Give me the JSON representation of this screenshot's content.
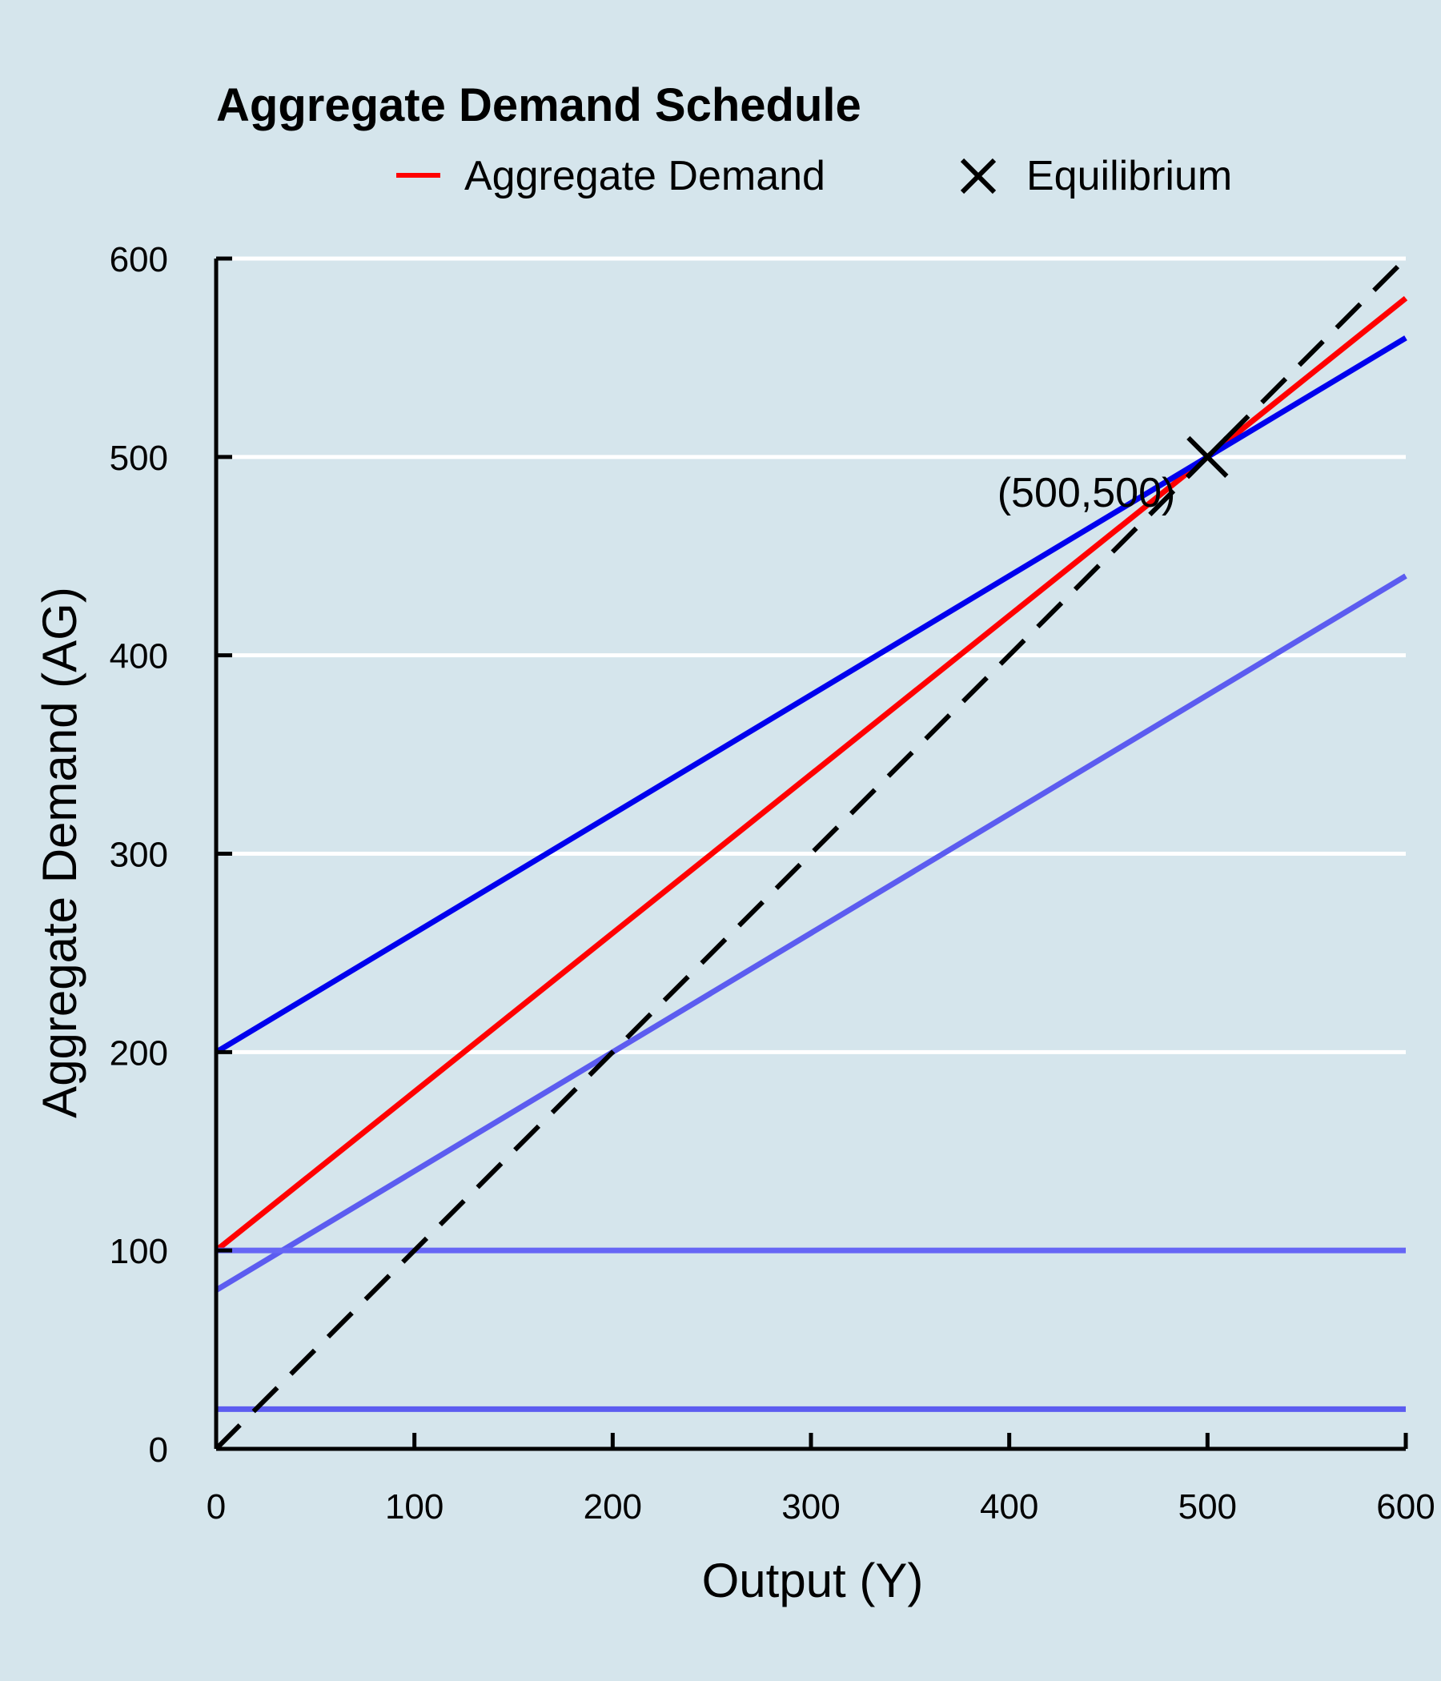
{
  "chart_data": {
    "type": "line",
    "title": "Aggregate Demand Schedule",
    "xlabel": "Output (Y)",
    "ylabel": "Aggregate Demand (AG)",
    "xlim": [
      0,
      600
    ],
    "ylim": [
      0,
      600
    ],
    "xticks": [
      0,
      100,
      200,
      300,
      400,
      500,
      600
    ],
    "yticks": [
      0,
      100,
      200,
      300,
      400,
      500,
      600
    ],
    "grid": "horizontal",
    "legend": {
      "placement": "top",
      "entries": [
        "Aggregate Demand",
        "Equilibrium"
      ]
    },
    "series": [
      {
        "name": "Aggregate Demand",
        "color": "#ff0000",
        "style": "solid",
        "x": [
          0,
          600
        ],
        "y": [
          100,
          580
        ]
      },
      {
        "color": "#0000ee",
        "style": "solid",
        "x": [
          0,
          600
        ],
        "y": [
          200,
          560
        ]
      },
      {
        "color": "#5c5cf0",
        "style": "solid",
        "x": [
          0,
          600
        ],
        "y": [
          80,
          440
        ]
      },
      {
        "color": "#6666f5",
        "style": "solid",
        "x": [
          0,
          600
        ],
        "y": [
          100,
          100
        ]
      },
      {
        "color": "#5c5cf0",
        "style": "solid",
        "x": [
          0,
          600
        ],
        "y": [
          20,
          20
        ]
      },
      {
        "color": "#000000",
        "style": "dashed",
        "x": [
          0,
          600
        ],
        "y": [
          0,
          600
        ]
      }
    ],
    "markers": [
      {
        "name": "Equilibrium",
        "symbol": "x",
        "x": 500,
        "y": 500,
        "label": "(500,500)"
      }
    ]
  }
}
